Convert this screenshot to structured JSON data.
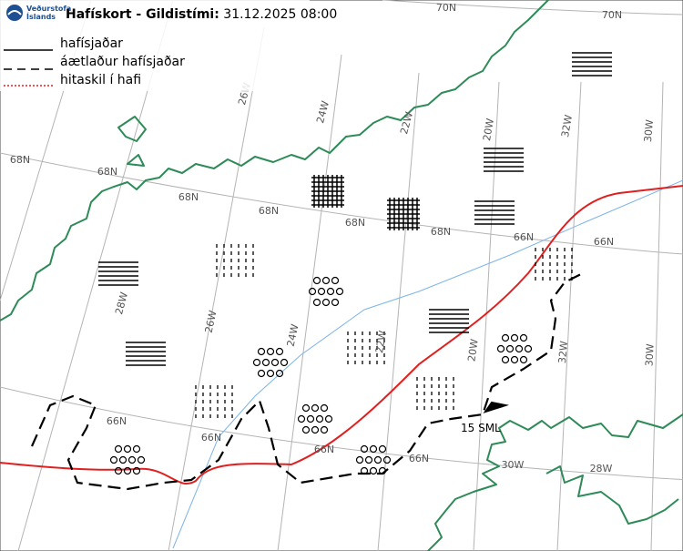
{
  "header": {
    "logo": [
      "Veðurstofa",
      "Íslands"
    ],
    "title_label": "Hafískort - Gildistími:",
    "valid_time": "31.12.2025 08:00"
  },
  "legend": [
    "hafísjaðar",
    "áætlaður hafísjaðar",
    "hitaskil í hafi"
  ],
  "grid_labels": [
    "70N",
    "70N",
    "68N",
    "68N",
    "68N",
    "68N",
    "68N",
    "68N",
    "66N",
    "66N",
    "66N",
    "66N",
    "66N",
    "66N",
    "30W",
    "28W",
    "26W",
    "24W",
    "22W",
    "20W",
    "32W",
    "30W",
    "28W",
    "26W",
    "24W",
    "22W",
    "20W",
    "32W",
    "30W"
  ],
  "annotations": {
    "distance": "15 SML"
  }
}
